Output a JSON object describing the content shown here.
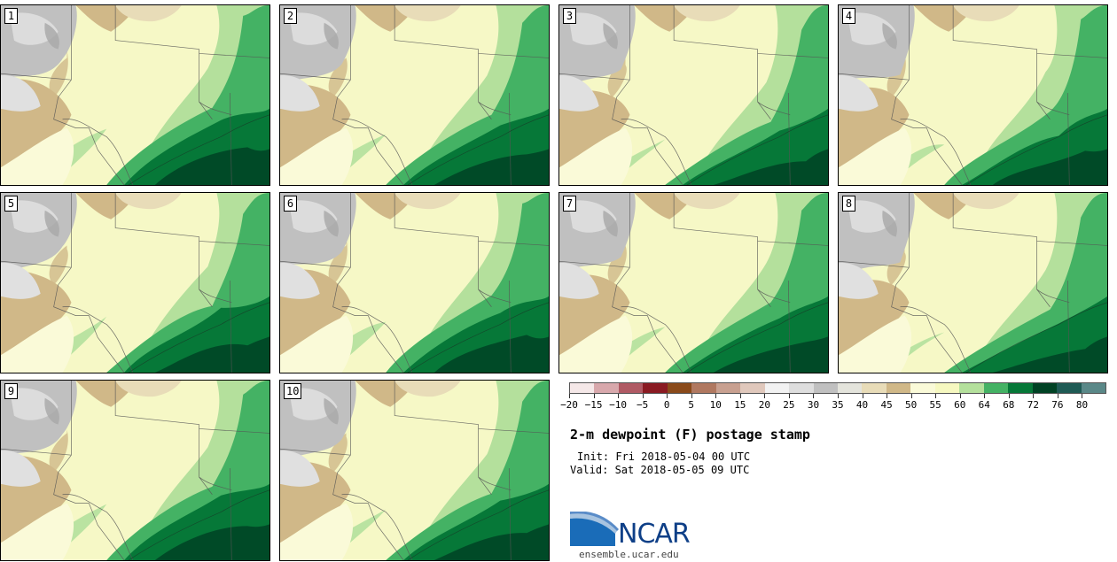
{
  "panels": [
    {
      "label": "1"
    },
    {
      "label": "2"
    },
    {
      "label": "3"
    },
    {
      "label": "4"
    },
    {
      "label": "5"
    },
    {
      "label": "6"
    },
    {
      "label": "7"
    },
    {
      "label": "8"
    },
    {
      "label": "9"
    },
    {
      "label": "10"
    }
  ],
  "legend": {
    "colors": [
      "#f5e8e8",
      "#d8a8ac",
      "#b05a64",
      "#8a1a22",
      "#8a4a1a",
      "#b07860",
      "#c8a090",
      "#e0c8bc",
      "#f2f2f2",
      "#dedede",
      "#c0c0c0",
      "#e4e4dc",
      "#e8dcb8",
      "#d0b888",
      "#fafad8",
      "#f6f8c0",
      "#b4e09c",
      "#44b264",
      "#067838",
      "#004224",
      "#1e5a54",
      "#5a8888"
    ],
    "ticks": [
      "-20",
      "-15",
      "-10",
      "-5",
      "0",
      "5",
      "10",
      "15",
      "20",
      "25",
      "30",
      "35",
      "40",
      "45",
      "50",
      "55",
      "60",
      "64",
      "68",
      "72",
      "76",
      "80"
    ]
  },
  "title": "2-m dewpoint (F) postage stamp",
  "init": "Init: Fri 2018-05-04 00 UTC",
  "valid": "Valid: Sat 2018-05-05 09 UTC",
  "logo": {
    "text": "NCAR",
    "icon": "ncar-swoosh-logo"
  },
  "url": "ensemble.ucar.edu"
}
